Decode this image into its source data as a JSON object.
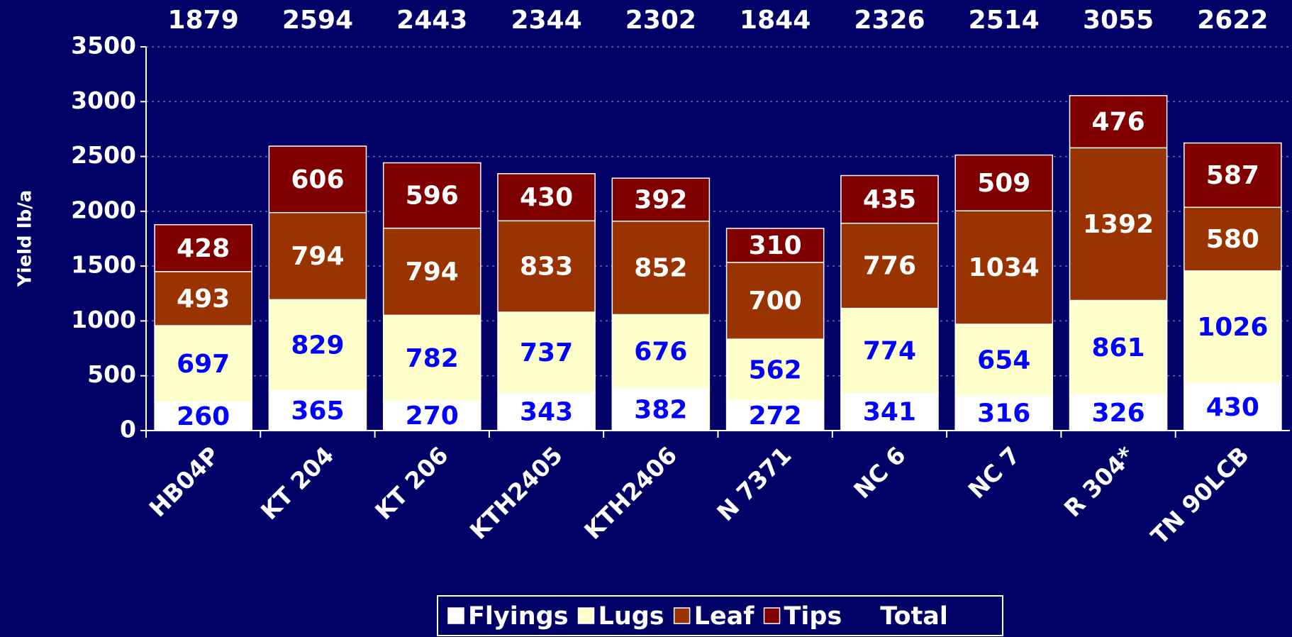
{
  "chart_data": {
    "type": "bar",
    "stacked": true,
    "y_label": "Yield lb/a",
    "categories": [
      "HB04P",
      "KT 204",
      "KT 206",
      "KTH2405",
      "KTH2406",
      "N 7371",
      "NC 6",
      "NC 7",
      "R 304*",
      "TN 90LCB"
    ],
    "series": [
      {
        "name": "Flyings",
        "color": "#ffffff",
        "label_color": "#0000ff",
        "values": [
          260,
          365,
          270,
          343,
          382,
          272,
          341,
          316,
          326,
          430
        ]
      },
      {
        "name": "Lugs",
        "color": "#ffffcc",
        "label_color": "#0000ff",
        "values": [
          697,
          829,
          782,
          737,
          676,
          562,
          774,
          654,
          861,
          1026
        ]
      },
      {
        "name": "Leaf",
        "color": "#993300",
        "label_color": "#ffffff",
        "values": [
          493,
          794,
          794,
          833,
          852,
          700,
          776,
          1034,
          1392,
          580
        ]
      },
      {
        "name": "Tips",
        "color": "#800000",
        "label_color": "#ffffff",
        "values": [
          428,
          606,
          596,
          430,
          392,
          310,
          435,
          509,
          476,
          587
        ]
      },
      {
        "name": "Total",
        "label_color": "#ffffff",
        "values": [
          1879,
          2594,
          2443,
          2344,
          2302,
          1844,
          2326,
          2514,
          3055,
          2622
        ]
      }
    ],
    "ylim": [
      0,
      3500
    ],
    "yticks": [
      0,
      500,
      1000,
      1500,
      2000,
      2500,
      3000,
      3500
    ],
    "grid": true,
    "legend": "bottom"
  }
}
